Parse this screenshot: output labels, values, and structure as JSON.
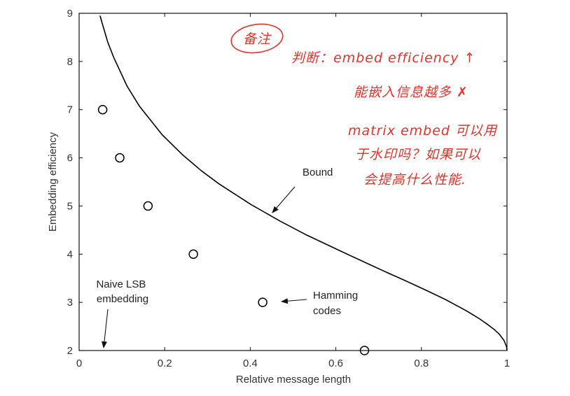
{
  "chart_data": {
    "type": "line",
    "xlabel": "Relative message length",
    "ylabel": "Embedding efficiency",
    "xlim": [
      0,
      1
    ],
    "ylim": [
      2,
      9
    ],
    "xticks": [
      0,
      0.2,
      0.4,
      0.6,
      0.8,
      1
    ],
    "xtick_labels": [
      "0",
      "0.2",
      "0.4",
      "0.6",
      "0.8",
      "1"
    ],
    "yticks": [
      2,
      3,
      4,
      5,
      6,
      7,
      8,
      9
    ],
    "ytick_labels": [
      "2",
      "3",
      "4",
      "5",
      "6",
      "7",
      "8",
      "9"
    ],
    "grid": false,
    "box": true,
    "series": [
      {
        "name": "Bound",
        "type": "line",
        "color": "#000000",
        "x": [
          0.049,
          0.053,
          0.067,
          0.081,
          0.112,
          0.141,
          0.194,
          0.242,
          0.286,
          0.327,
          0.402,
          0.469,
          0.529,
          0.61,
          0.68,
          0.722,
          0.76,
          0.811,
          0.856,
          0.881,
          0.904,
          0.934,
          0.958,
          0.971,
          0.982,
          0.993,
          0.999,
          1.0
        ],
        "y": [
          8.95,
          8.82,
          8.4,
          8.08,
          7.49,
          7.07,
          6.48,
          6.06,
          5.73,
          5.46,
          5.03,
          4.69,
          4.41,
          4.07,
          3.78,
          3.61,
          3.46,
          3.25,
          3.06,
          2.94,
          2.83,
          2.67,
          2.52,
          2.43,
          2.34,
          2.21,
          2.08,
          2.0
        ]
      },
      {
        "name": "Hamming codes",
        "type": "scatter",
        "marker": "open-circle",
        "color": "#000000",
        "x": [
          0.055,
          0.095,
          0.161,
          0.267,
          0.429,
          0.667
        ],
        "y": [
          7,
          6,
          5,
          4,
          3,
          2
        ]
      }
    ],
    "annotations": [
      {
        "lines": [
          "Bound"
        ]
      },
      {
        "lines": [
          "Hamming",
          "codes"
        ]
      },
      {
        "lines": [
          "Naive LSB",
          "embedding"
        ]
      }
    ]
  },
  "handwritten_notes": {
    "color": "#e2332b",
    "circled_label": "备注",
    "lines": [
      "判断：embed efficiency ↑",
      "能嵌入信息越多 ✗",
      "matrix embed 可以用",
      "于水印吗？如果可以",
      "会提高什么性能."
    ]
  }
}
